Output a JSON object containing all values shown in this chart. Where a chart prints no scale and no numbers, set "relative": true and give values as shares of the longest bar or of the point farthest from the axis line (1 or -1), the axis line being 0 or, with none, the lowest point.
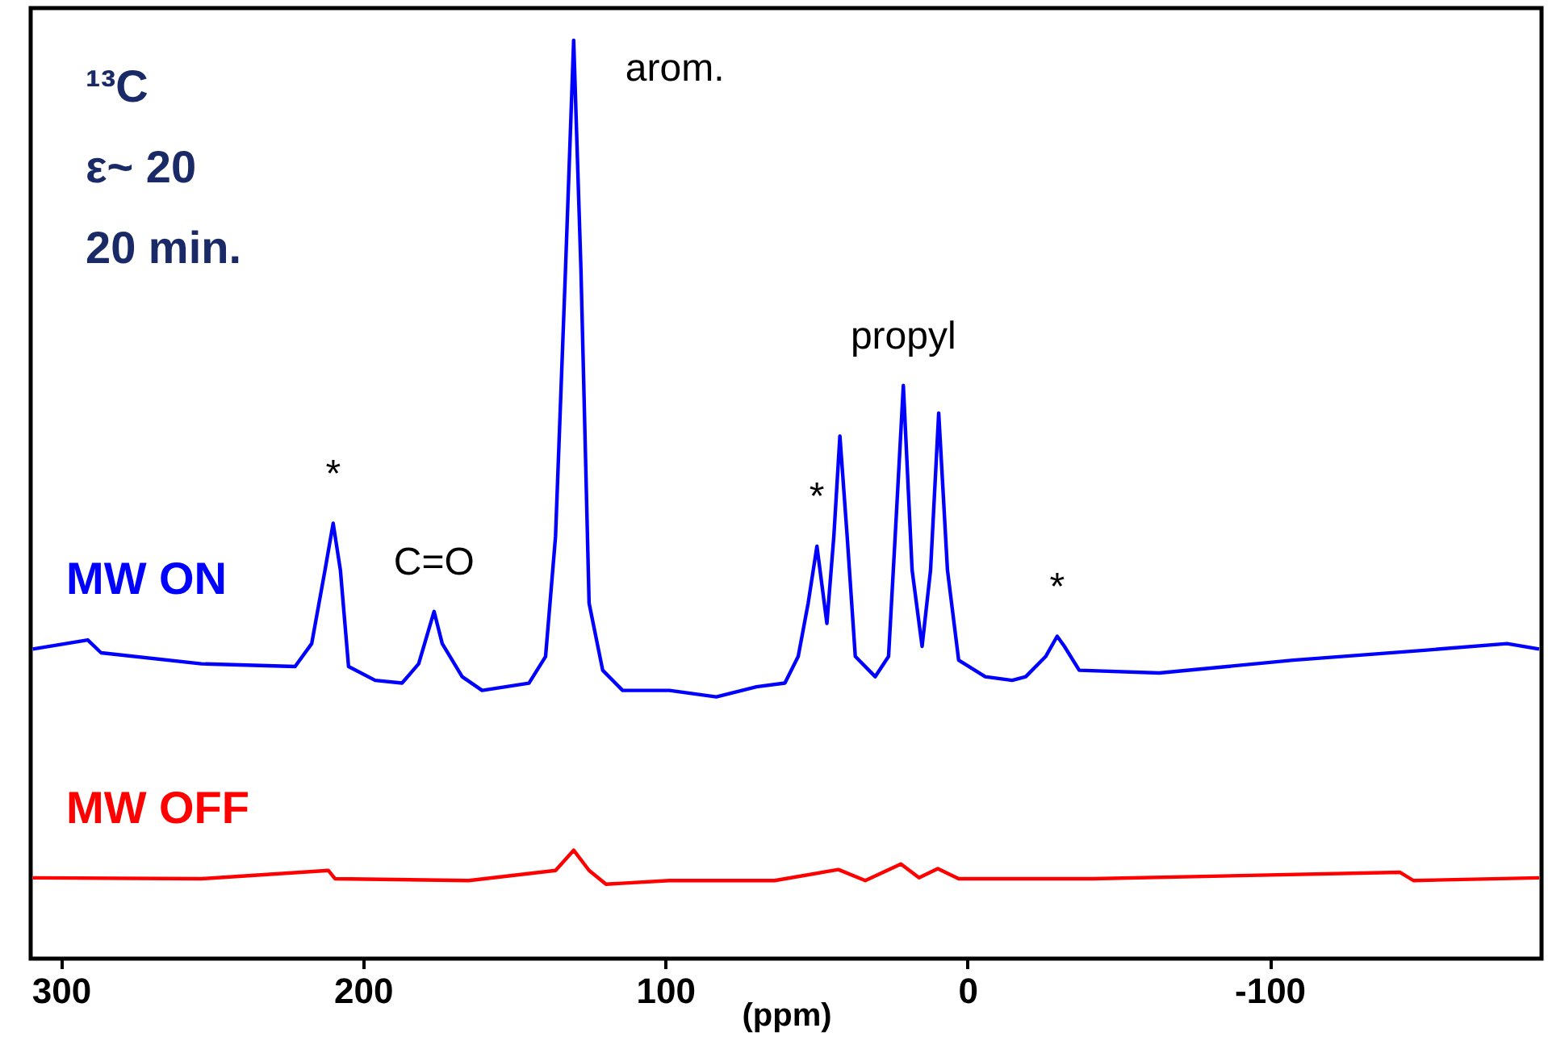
{
  "chart_data": {
    "type": "line",
    "relative": true,
    "xlabel": "(ppm)",
    "xlim": [
      310,
      -190
    ],
    "xticks": [
      300,
      200,
      100,
      0,
      -100
    ],
    "grid": false,
    "legend": false,
    "marker": "none",
    "line_style": "solid",
    "annotations": [
      "¹³C",
      "ε~ 20",
      "20 min.",
      {
        "text": "arom.",
        "x": 130.3,
        "y": 1
      },
      {
        "text": "*",
        "x": 209.9,
        "y": 0.474
      },
      {
        "text": "C=O",
        "x": 176.5,
        "y": 0.378
      },
      {
        "text": "*",
        "x": 49.8,
        "y": 0.449
      },
      {
        "text": "propyl",
        "x": 21.2,
        "y": 0.624
      },
      {
        "text": "*",
        "x": -29.7,
        "y": 0.351
      }
    ],
    "series": [
      {
        "name": "MW ON",
        "color": "#0000ff",
        "x": [
          309.3,
          291.1,
          286.7,
          253.5,
          222.5,
          217.0,
          212.6,
          209.9,
          207.5,
          204.8,
          196.0,
          187.1,
          181.6,
          176.5,
          173.8,
          167.2,
          160.6,
          145.1,
          139.6,
          136.3,
          133.0,
          130.3,
          127.9,
          125.2,
          120.7,
          114.1,
          98.6,
          83.1,
          69.8,
          60.4,
          56.0,
          52.7,
          49.8,
          46.5,
          44.2,
          42.2,
          39.8,
          37.1,
          30.5,
          26.1,
          23.9,
          21.2,
          18.3,
          15.0,
          12.2,
          9.5,
          6.6,
          2.9,
          -5.9,
          -14.8,
          -19.3,
          -25.9,
          -29.7,
          -32.1,
          -37.0,
          -63.5,
          -107.8,
          -152.1,
          -178.6,
          -189.2
        ],
        "values": [
          0.337,
          0.347,
          0.333,
          0.321,
          0.318,
          0.343,
          0.423,
          0.474,
          0.423,
          0.318,
          0.303,
          0.3,
          0.321,
          0.378,
          0.343,
          0.307,
          0.292,
          0.3,
          0.329,
          0.46,
          0.751,
          1,
          0.751,
          0.387,
          0.314,
          0.292,
          0.292,
          0.285,
          0.296,
          0.3,
          0.329,
          0.387,
          0.449,
          0.365,
          0.46,
          0.569,
          0.46,
          0.329,
          0.307,
          0.329,
          0.46,
          0.624,
          0.423,
          0.34,
          0.423,
          0.594,
          0.423,
          0.325,
          0.307,
          0.303,
          0.307,
          0.329,
          0.351,
          0.34,
          0.314,
          0.311,
          0.325,
          0.336,
          0.343,
          0.337
        ]
      },
      {
        "name": "MW OFF",
        "color": "#ff0000",
        "x": [
          309.3,
          253.5,
          211.5,
          209.3,
          165.0,
          136.3,
          130.3,
          125.2,
          119.6,
          98.6,
          63.8,
          42.7,
          33.8,
          22.0,
          16.0,
          9.8,
          2.9,
          -41.4,
          -143.2,
          -147.6,
          -189.2
        ],
        "values": [
          0.088,
          0.087,
          0.096,
          0.087,
          0.085,
          0.096,
          0.118,
          0.096,
          0.081,
          0.085,
          0.085,
          0.097,
          0.085,
          0.103,
          0.088,
          0.098,
          0.087,
          0.087,
          0.094,
          0.085,
          0.088
        ]
      }
    ]
  }
}
